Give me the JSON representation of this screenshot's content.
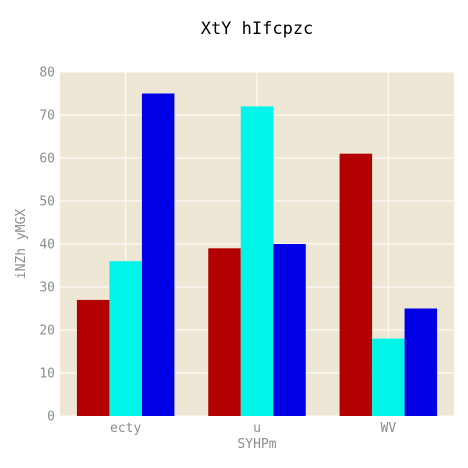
{
  "chart_data": {
    "type": "bar",
    "title": "XtY hIfcpzc",
    "xlabel": "SYHPm",
    "ylabel": "iNZh yMGX",
    "categories": [
      "ecty",
      "u",
      "WV"
    ],
    "series": [
      {
        "values": [
          27,
          39,
          61
        ],
        "color": "#b30000"
      },
      {
        "values": [
          36,
          72,
          18
        ],
        "color": "#00f5e9"
      },
      {
        "values": [
          75,
          40,
          25
        ],
        "color": "#0000e6"
      }
    ],
    "ylim": [
      0,
      80
    ],
    "yticks": [
      0,
      10,
      20,
      30,
      40,
      50,
      60,
      70,
      80
    ],
    "grid": true,
    "colors": {
      "plot_background": "#efe7d5",
      "grid": "#ffffff",
      "tick_label": "#8d8d8d",
      "title": "#000000"
    }
  }
}
